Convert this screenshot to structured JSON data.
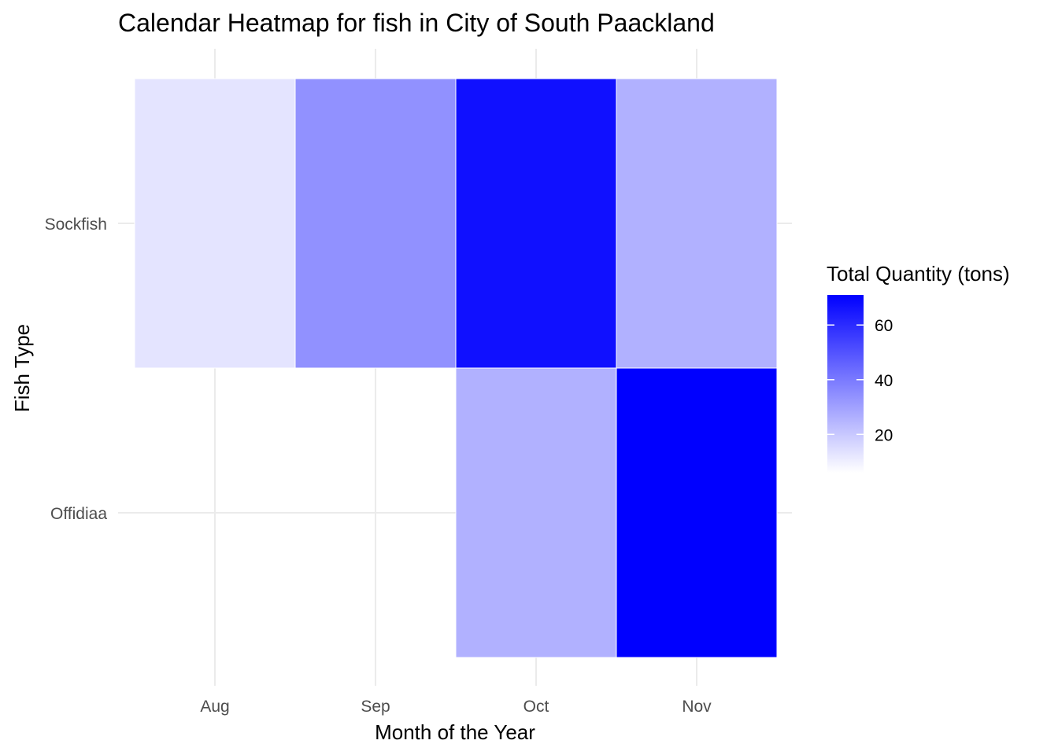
{
  "chart_data": {
    "type": "heatmap",
    "title": "Calendar Heatmap for fish in City of South Paackland",
    "xlabel": "Month of the Year",
    "ylabel": "Fish Type",
    "x_categories": [
      "Aug",
      "Sep",
      "Oct",
      "Nov"
    ],
    "y_categories": [
      "Offidiaa",
      "Sockfish"
    ],
    "cells": [
      {
        "x": "Aug",
        "y": "Sockfish",
        "value": 13
      },
      {
        "x": "Sep",
        "y": "Sockfish",
        "value": 34
      },
      {
        "x": "Oct",
        "y": "Sockfish",
        "value": 67
      },
      {
        "x": "Nov",
        "y": "Sockfish",
        "value": 26
      },
      {
        "x": "Oct",
        "y": "Offidiaa",
        "value": 26
      },
      {
        "x": "Nov",
        "y": "Offidiaa",
        "value": 71
      }
    ],
    "legend": {
      "title": "Total Quantity (tons)",
      "ticks": [
        20,
        40,
        60
      ],
      "range": [
        6,
        71
      ],
      "low_color": "#ffffff",
      "high_color": "#0000ff",
      "placement": "right"
    },
    "grid": true
  }
}
